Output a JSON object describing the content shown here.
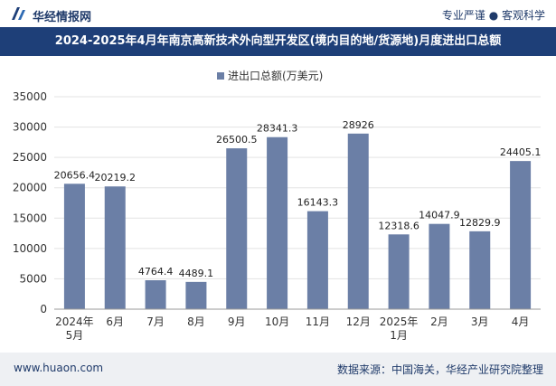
{
  "header": {
    "brand": "华经情报网",
    "slogan": "专业严谨 ● 客观科学"
  },
  "chart_data": {
    "type": "bar",
    "title": "2024-2025年4月年南京高新技术外向型开发区(境内目的地/货源地)月度进出口总额",
    "legend": "进出口总额(万美元)",
    "categories": [
      "2024年5月",
      "6月",
      "7月",
      "8月",
      "9月",
      "10月",
      "11月",
      "12月",
      "2025年1月",
      "2月",
      "3月",
      "4月"
    ],
    "category_lines": [
      [
        "2024年",
        "5月"
      ],
      [
        "6月"
      ],
      [
        "7月"
      ],
      [
        "8月"
      ],
      [
        "9月"
      ],
      [
        "10月"
      ],
      [
        "11月"
      ],
      [
        "12月"
      ],
      [
        "2025年",
        "1月"
      ],
      [
        "2月"
      ],
      [
        "3月"
      ],
      [
        "4月"
      ]
    ],
    "values": [
      20656.4,
      20219.2,
      4764.4,
      4489.1,
      26500.5,
      28341.3,
      16143.3,
      28926,
      12318.6,
      14047.9,
      12829.9,
      24405.1
    ],
    "value_labels": [
      "20656.4",
      "20219.2",
      "4764.4",
      "4489.1",
      "26500.5",
      "28341.3",
      "16143.3",
      "28926",
      "12318.6",
      "14047.9",
      "12829.9",
      "24405.1"
    ],
    "ylim": [
      0,
      35000
    ],
    "yticks": [
      0,
      5000,
      10000,
      15000,
      20000,
      25000,
      30000,
      35000
    ],
    "colors": {
      "bar": "#6b7fa6"
    }
  },
  "footer": {
    "site": "www.huaon.com",
    "source": "数据来源：中国海关，华经产业研究院整理"
  }
}
